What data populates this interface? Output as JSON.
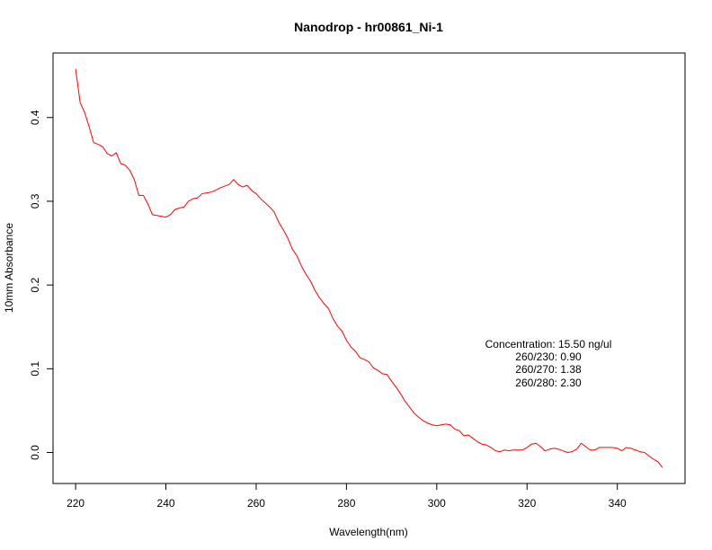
{
  "chart_data": {
    "type": "line",
    "title": "Nanodrop - hr00861_Ni-1",
    "xlabel": "Wavelength(nm)",
    "ylabel": "10mm Absorbance",
    "xlim": [
      215,
      355
    ],
    "ylim": [
      -0.037,
      0.477
    ],
    "xticks": [
      220,
      240,
      260,
      280,
      300,
      320,
      340
    ],
    "yticks": [
      0.0,
      0.1,
      0.2,
      0.3,
      0.4
    ],
    "xtick_labels": [
      "220",
      "240",
      "260",
      "280",
      "300",
      "320",
      "340"
    ],
    "ytick_labels": [
      "0.0",
      "0.1",
      "0.2",
      "0.3",
      "0.4"
    ],
    "grid": false,
    "series": [
      {
        "color": "#ff0000",
        "x": [
          220,
          221,
          222,
          223,
          224,
          225,
          226,
          227,
          228,
          229,
          230,
          231,
          232,
          233,
          234,
          235,
          236,
          237,
          238,
          239,
          240,
          241,
          242,
          243,
          244,
          245,
          246,
          247,
          248,
          249,
          250,
          251,
          252,
          253,
          254,
          255,
          256,
          257,
          258,
          259,
          260,
          261,
          262,
          263,
          264,
          265,
          266,
          267,
          268,
          269,
          270,
          271,
          272,
          273,
          274,
          275,
          276,
          277,
          278,
          279,
          280,
          281,
          282,
          283,
          284,
          285,
          286,
          287,
          288,
          289,
          290,
          291,
          292,
          293,
          294,
          295,
          296,
          297,
          298,
          299,
          300,
          301,
          302,
          303,
          304,
          305,
          306,
          307,
          308,
          309,
          310,
          311,
          312,
          313,
          314,
          315,
          316,
          317,
          318,
          319,
          320,
          321,
          322,
          323,
          324,
          325,
          326,
          327,
          328,
          329,
          330,
          331,
          332,
          333,
          334,
          335,
          336,
          337,
          338,
          339,
          340,
          341,
          342,
          343,
          344,
          345,
          346,
          347,
          348,
          349,
          350
        ],
        "y": [
          0.458,
          0.418,
          0.406,
          0.389,
          0.37,
          0.368,
          0.365,
          0.357,
          0.354,
          0.358,
          0.345,
          0.343,
          0.337,
          0.326,
          0.307,
          0.307,
          0.297,
          0.284,
          0.283,
          0.282,
          0.281,
          0.284,
          0.29,
          0.292,
          0.293,
          0.3,
          0.303,
          0.304,
          0.309,
          0.31,
          0.311,
          0.313,
          0.316,
          0.318,
          0.32,
          0.326,
          0.32,
          0.317,
          0.319,
          0.313,
          0.309,
          0.303,
          0.298,
          0.293,
          0.287,
          0.275,
          0.266,
          0.256,
          0.243,
          0.235,
          0.223,
          0.213,
          0.205,
          0.194,
          0.185,
          0.178,
          0.172,
          0.16,
          0.151,
          0.145,
          0.134,
          0.126,
          0.121,
          0.113,
          0.111,
          0.108,
          0.101,
          0.098,
          0.094,
          0.093,
          0.085,
          0.078,
          0.07,
          0.061,
          0.054,
          0.047,
          0.042,
          0.038,
          0.035,
          0.033,
          0.032,
          0.033,
          0.034,
          0.033,
          0.028,
          0.026,
          0.02,
          0.021,
          0.017,
          0.013,
          0.01,
          0.009,
          0.006,
          0.002,
          0.001,
          0.003,
          0.002,
          0.003,
          0.003,
          0.003,
          0.006,
          0.01,
          0.011,
          0.007,
          0.002,
          0.004,
          0.005,
          0.004,
          0.002,
          0.0,
          0.001,
          0.004,
          0.011,
          0.007,
          0.003,
          0.003,
          0.006,
          0.006,
          0.006,
          0.006,
          0.005,
          0.002,
          0.006,
          0.005,
          0.003,
          0.001,
          0.0,
          -0.004,
          -0.008,
          -0.011,
          -0.018
        ]
      }
    ],
    "annotations": [
      "Concentration: 15.50 ng/ul",
      "260/230: 0.90",
      "260/270: 1.38",
      "260/280: 2.30"
    ]
  }
}
